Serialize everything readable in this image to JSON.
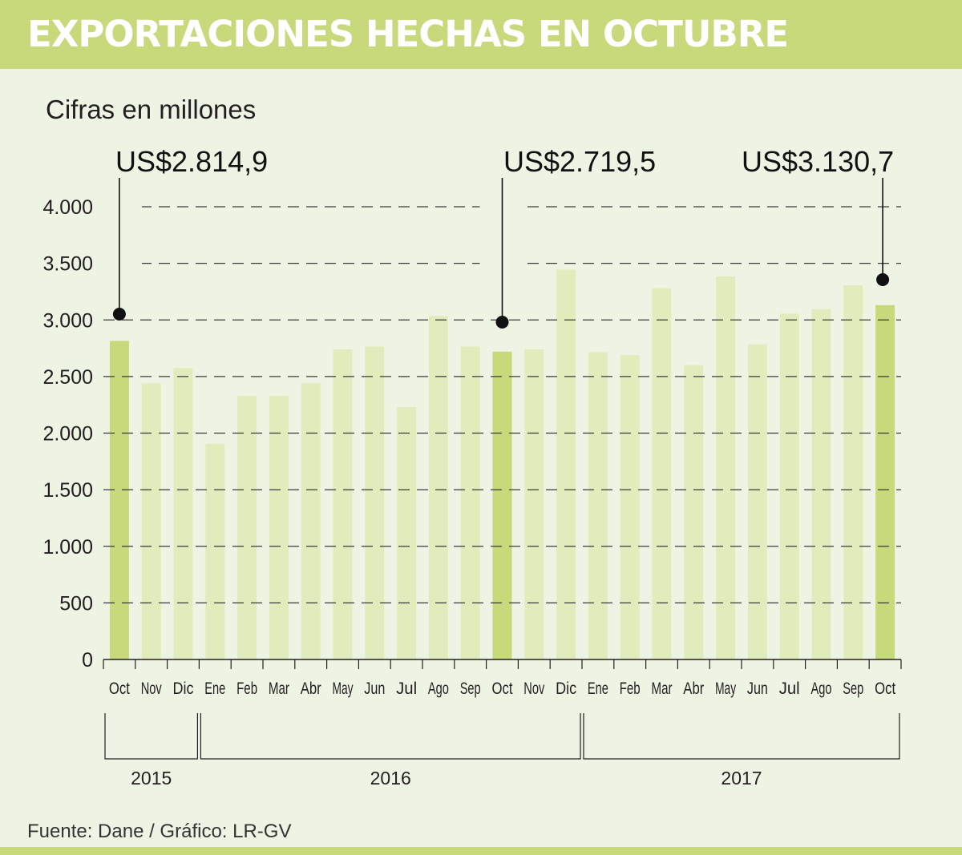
{
  "title": "EXPORTACIONES HECHAS EN OCTUBRE",
  "subtitle": "Cifras en millones",
  "source": "Fuente: Dane / Gráfico: LR-GV",
  "colors": {
    "header": "#c8d97c",
    "background": "#eef4e3",
    "bar_highlight": "#c8d97c",
    "bar_normal": "#e2ebbb"
  },
  "callouts": [
    {
      "text": "US$2.814,9",
      "bar_index": 0
    },
    {
      "text": "US$2.719,5",
      "bar_index": 12
    },
    {
      "text": "US$3.130,7",
      "bar_index": 24
    }
  ],
  "chart_data": {
    "type": "bar",
    "title": "EXPORTACIONES HECHAS EN OCTUBRE",
    "subtitle": "Cifras en millones",
    "categories": [
      "Oct",
      "Nov",
      "Dic",
      "Ene",
      "Feb",
      "Mar",
      "Abr",
      "May",
      "Jun",
      "Jul",
      "Ago",
      "Sep",
      "Oct",
      "Nov",
      "Dic",
      "Ene",
      "Feb",
      "Mar",
      "Abr",
      "May",
      "Jun",
      "Jul",
      "Ago",
      "Sep",
      "Oct"
    ],
    "values": [
      2814.9,
      2440,
      2575,
      1905,
      2330,
      2330,
      2440,
      2740,
      2765,
      2230,
      3035,
      2765,
      2719.5,
      2740,
      3445,
      2715,
      2690,
      3280,
      2600,
      3385,
      2785,
      3055,
      3095,
      3305,
      3130.7
    ],
    "highlight": [
      0,
      12,
      24
    ],
    "ylim": [
      0,
      4000
    ],
    "yticks": [
      0,
      500,
      1000,
      1500,
      2000,
      2500,
      3000,
      3500,
      4000
    ],
    "ytick_labels": [
      "0",
      "500",
      "1.000",
      "1.500",
      "2.000",
      "2.500",
      "3.000",
      "3.500",
      "4.000"
    ],
    "years": [
      {
        "label": "2015",
        "from": 0,
        "to": 2
      },
      {
        "label": "2016",
        "from": 3,
        "to": 14
      },
      {
        "label": "2017",
        "from": 15,
        "to": 24
      }
    ],
    "grid": true
  }
}
